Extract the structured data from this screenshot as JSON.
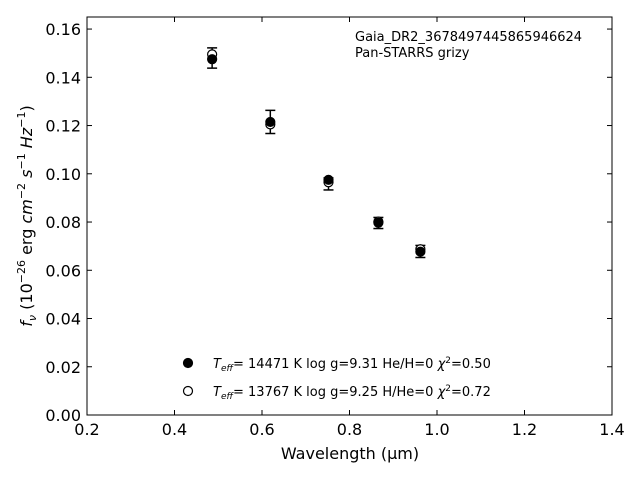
{
  "chart_data": {
    "type": "scatter",
    "xlabel": "Wavelength (μm)",
    "ylabel": "f_ν (10^-26 erg cm^-2 s^-1 Hz^-1)",
    "xlim": [
      0.2,
      1.4
    ],
    "ylim": [
      0.0,
      0.165
    ],
    "xticks": [
      "0.2",
      "0.4",
      "0.6",
      "0.8",
      "1.0",
      "1.2",
      "1.4"
    ],
    "yticks": [
      "0.00",
      "0.02",
      "0.04",
      "0.06",
      "0.08",
      "0.10",
      "0.12",
      "0.14",
      "0.16"
    ],
    "annotation": [
      "Gaia_DR2_3678497445865946624",
      "Pan-STARRS grizy"
    ],
    "observed": {
      "x": [
        0.486,
        0.619,
        0.752,
        0.866,
        0.962
      ],
      "y": [
        0.148,
        0.1215,
        0.0958,
        0.0796,
        0.0678
      ],
      "yerr": [
        0.0042,
        0.0048,
        0.0025,
        0.0023,
        0.0025
      ]
    },
    "series": [
      {
        "label_parts": [
          "T",
          "eff",
          "= 14471 K  log g=9.31  He/H=0  ",
          "χ",
          "2",
          "=0.50"
        ],
        "marker": "filled",
        "x": [
          0.486,
          0.619,
          0.752,
          0.866,
          0.962
        ],
        "y": [
          0.1475,
          0.1215,
          0.0975,
          0.0797,
          0.0677
        ]
      },
      {
        "label_parts": [
          "T",
          "eff",
          "= 13767 K  log g=9.25  H/He=0  ",
          "χ",
          "2",
          "=0.72"
        ],
        "marker": "open",
        "x": [
          0.486,
          0.619,
          0.752,
          0.866,
          0.962
        ],
        "y": [
          0.1495,
          0.1205,
          0.0965,
          0.0802,
          0.0687
        ]
      }
    ],
    "grid": false,
    "legend_position": "lower-center"
  }
}
